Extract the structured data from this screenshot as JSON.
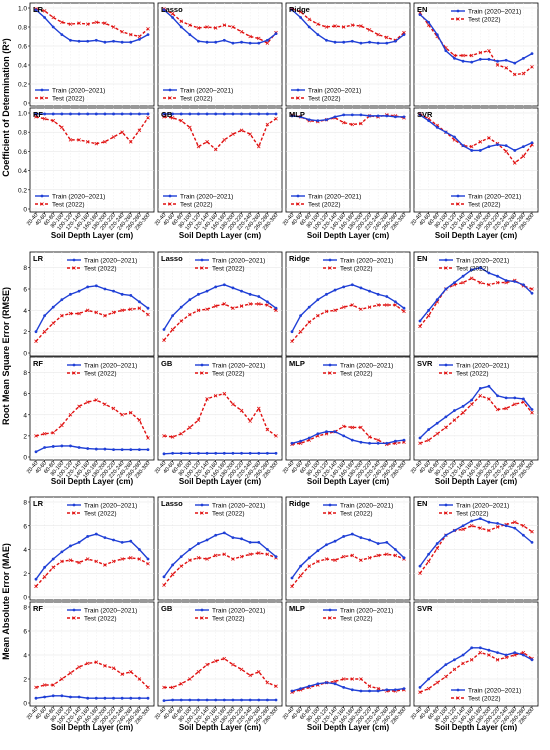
{
  "x_categories": [
    "20-40",
    "40-60",
    "60-80",
    "80-100",
    "100-120",
    "120-140",
    "140-160",
    "160-180",
    "180-200",
    "200-220",
    "220-240",
    "240-260",
    "260-280",
    "280-300"
  ],
  "x_label": "Soil Depth Layer (cm)",
  "legend": {
    "train": "Train (2020–2021)",
    "test": "Test (2022)"
  },
  "colors": {
    "train": "#1f3fd6",
    "test": "#e01010"
  },
  "chart_data": [
    {
      "type": "line",
      "ylabel": "Coefficient of Determination (R²)",
      "ylim": [
        0,
        1
      ],
      "yticks": [
        0,
        0.2,
        0.4,
        0.6,
        0.8,
        1.0
      ],
      "yticklabels": [
        "0",
        "0.2",
        "0.4",
        "0.6",
        "0.8",
        "1.0"
      ],
      "panels": [
        {
          "name": "LR",
          "legend": "bottom-left",
          "train": [
            0.98,
            0.9,
            0.8,
            0.72,
            0.66,
            0.65,
            0.65,
            0.66,
            0.64,
            0.65,
            0.64,
            0.64,
            0.67,
            0.72
          ],
          "test": [
            0.99,
            0.97,
            0.9,
            0.85,
            0.83,
            0.84,
            0.83,
            0.85,
            0.84,
            0.8,
            0.75,
            0.72,
            0.7,
            0.78
          ]
        },
        {
          "name": "Lasso",
          "legend": "bottom-left",
          "train": [
            0.98,
            0.9,
            0.8,
            0.72,
            0.65,
            0.64,
            0.64,
            0.66,
            0.63,
            0.64,
            0.63,
            0.63,
            0.66,
            0.73
          ],
          "test": [
            0.99,
            0.94,
            0.86,
            0.82,
            0.79,
            0.8,
            0.79,
            0.82,
            0.8,
            0.75,
            0.7,
            0.68,
            0.63,
            0.74
          ]
        },
        {
          "name": "Ridge",
          "legend": "bottom-left",
          "train": [
            0.98,
            0.9,
            0.8,
            0.72,
            0.66,
            0.64,
            0.64,
            0.65,
            0.63,
            0.64,
            0.63,
            0.63,
            0.65,
            0.72
          ],
          "test": [
            0.99,
            0.96,
            0.88,
            0.83,
            0.8,
            0.81,
            0.8,
            0.82,
            0.81,
            0.77,
            0.72,
            0.69,
            0.66,
            0.74
          ]
        },
        {
          "name": "EN",
          "legend": "top-right",
          "train": [
            0.93,
            0.85,
            0.72,
            0.55,
            0.47,
            0.44,
            0.43,
            0.46,
            0.46,
            0.44,
            0.45,
            0.42,
            0.47,
            0.52
          ],
          "test": [
            0.95,
            0.82,
            0.7,
            0.58,
            0.5,
            0.5,
            0.5,
            0.53,
            0.55,
            0.4,
            0.37,
            0.3,
            0.31,
            0.38
          ]
        },
        {
          "name": "RF",
          "legend": "bottom-left",
          "train": [
            0.99,
            0.99,
            0.99,
            0.99,
            0.99,
            0.99,
            0.99,
            0.99,
            0.99,
            0.99,
            0.99,
            0.99,
            0.99,
            0.99
          ],
          "test": [
            0.96,
            0.94,
            0.92,
            0.85,
            0.72,
            0.72,
            0.7,
            0.68,
            0.7,
            0.75,
            0.8,
            0.7,
            0.82,
            0.95
          ]
        },
        {
          "name": "GB",
          "legend": "bottom-left",
          "train": [
            0.99,
            0.99,
            0.99,
            0.99,
            0.99,
            0.99,
            0.99,
            0.99,
            0.99,
            0.99,
            0.99,
            0.99,
            0.99,
            0.99
          ],
          "test": [
            0.96,
            0.95,
            0.92,
            0.85,
            0.65,
            0.7,
            0.62,
            0.72,
            0.78,
            0.82,
            0.78,
            0.65,
            0.88,
            0.94
          ]
        },
        {
          "name": "MLP",
          "legend": "bottom-left",
          "train": [
            0.97,
            0.96,
            0.93,
            0.92,
            0.93,
            0.96,
            0.98,
            0.98,
            0.98,
            0.97,
            0.97,
            0.97,
            0.96,
            0.96
          ],
          "test": [
            0.98,
            0.96,
            0.92,
            0.91,
            0.93,
            0.95,
            0.9,
            0.88,
            0.89,
            0.97,
            0.96,
            0.98,
            0.97,
            0.95
          ]
        },
        {
          "name": "SVR",
          "legend": "bottom-right",
          "train": [
            0.98,
            0.92,
            0.85,
            0.8,
            0.75,
            0.66,
            0.61,
            0.61,
            0.65,
            0.67,
            0.66,
            0.61,
            0.65,
            0.69
          ],
          "test": [
            0.99,
            0.94,
            0.87,
            0.8,
            0.72,
            0.66,
            0.65,
            0.7,
            0.74,
            0.68,
            0.6,
            0.48,
            0.55,
            0.67
          ]
        }
      ]
    },
    {
      "type": "line",
      "ylabel": "Root Mean Square Error (RMSE)",
      "ylim": [
        0,
        9
      ],
      "yticks": [
        0,
        2,
        4,
        6,
        8
      ],
      "yticklabels": [
        "0",
        "2",
        "4",
        "6",
        "8"
      ],
      "panels": [
        {
          "name": "LR",
          "legend": "top-right",
          "train": [
            2.0,
            3.5,
            4.3,
            5.0,
            5.5,
            5.8,
            6.2,
            6.3,
            6.0,
            5.8,
            5.5,
            5.4,
            4.8,
            4.2
          ],
          "test": [
            1.1,
            2.0,
            2.8,
            3.5,
            3.7,
            3.7,
            4.0,
            3.8,
            3.5,
            3.8,
            4.0,
            4.1,
            4.2,
            3.6
          ]
        },
        {
          "name": "Lasso",
          "legend": "top-right",
          "train": [
            2.2,
            3.5,
            4.3,
            5.0,
            5.5,
            5.8,
            6.2,
            6.4,
            6.1,
            5.8,
            5.5,
            5.3,
            4.8,
            4.2
          ],
          "test": [
            1.2,
            2.2,
            3.0,
            3.6,
            4.0,
            4.1,
            4.4,
            4.6,
            4.2,
            4.4,
            4.6,
            4.6,
            4.5,
            4.0
          ]
        },
        {
          "name": "Ridge",
          "legend": "top-right",
          "train": [
            2.0,
            3.5,
            4.3,
            5.0,
            5.5,
            5.9,
            6.2,
            6.4,
            6.1,
            5.8,
            5.5,
            5.3,
            4.8,
            4.2
          ],
          "test": [
            1.1,
            2.0,
            2.9,
            3.5,
            3.9,
            4.0,
            4.3,
            4.5,
            4.1,
            4.3,
            4.5,
            4.5,
            4.5,
            3.9
          ]
        },
        {
          "name": "EN",
          "legend": "top-left",
          "train": [
            3.0,
            4.0,
            5.0,
            6.0,
            6.6,
            7.2,
            7.8,
            8.0,
            7.5,
            7.2,
            6.8,
            6.7,
            6.4,
            5.6
          ],
          "test": [
            2.5,
            3.5,
            4.8,
            6.0,
            6.4,
            6.6,
            7.0,
            6.6,
            6.4,
            6.6,
            6.6,
            6.8,
            6.3,
            6.0
          ]
        },
        {
          "name": "RF",
          "legend": "top-right",
          "train": [
            0.5,
            0.9,
            1.0,
            1.05,
            1.05,
            0.9,
            0.8,
            0.75,
            0.75,
            0.7,
            0.7,
            0.7,
            0.7,
            0.7
          ],
          "test": [
            2.0,
            2.2,
            2.3,
            3.0,
            4.0,
            4.8,
            5.2,
            5.4,
            5.0,
            4.6,
            4.0,
            4.2,
            3.5,
            1.8
          ]
        },
        {
          "name": "GB",
          "legend": "top-right",
          "train": [
            0.3,
            0.35,
            0.35,
            0.35,
            0.35,
            0.35,
            0.35,
            0.35,
            0.35,
            0.35,
            0.35,
            0.35,
            0.35,
            0.35
          ],
          "test": [
            2.0,
            1.9,
            2.2,
            2.8,
            3.5,
            5.5,
            5.8,
            6.0,
            5.0,
            4.4,
            3.4,
            4.6,
            2.6,
            2.0
          ]
        },
        {
          "name": "MLP",
          "legend": "top-right",
          "train": [
            1.3,
            1.5,
            1.8,
            2.2,
            2.4,
            2.4,
            2.0,
            1.6,
            1.4,
            1.3,
            1.3,
            1.3,
            1.5,
            1.6
          ],
          "test": [
            1.2,
            1.3,
            1.6,
            2.0,
            2.2,
            2.4,
            2.9,
            2.8,
            2.8,
            1.9,
            1.6,
            1.2,
            1.3,
            1.4
          ]
        },
        {
          "name": "SVR",
          "legend": "top-left",
          "train": [
            1.8,
            2.6,
            3.2,
            3.8,
            4.4,
            4.8,
            5.4,
            6.5,
            6.7,
            5.8,
            5.6,
            5.6,
            5.5,
            4.5
          ],
          "test": [
            1.3,
            1.6,
            2.2,
            2.8,
            3.5,
            4.2,
            5.0,
            5.8,
            5.5,
            4.5,
            4.6,
            5.0,
            5.2,
            4.2
          ]
        }
      ]
    },
    {
      "type": "line",
      "ylabel": "Mean Absolute Error (MAE)",
      "ylim": [
        0,
        8
      ],
      "yticks": [
        0,
        2,
        4,
        6,
        8
      ],
      "yticklabels": [
        "0",
        "2",
        "4",
        "6",
        "8"
      ],
      "panels": [
        {
          "name": "LR",
          "legend": "top-right",
          "train": [
            1.5,
            2.5,
            3.2,
            3.8,
            4.3,
            4.6,
            5.1,
            5.3,
            5.0,
            4.8,
            4.6,
            4.7,
            4.0,
            3.2
          ],
          "test": [
            0.9,
            1.7,
            2.5,
            3.0,
            3.1,
            2.9,
            3.2,
            3.0,
            2.7,
            3.0,
            3.2,
            3.3,
            3.2,
            2.8
          ]
        },
        {
          "name": "Lasso",
          "legend": "top-right",
          "train": [
            1.7,
            2.7,
            3.4,
            4.0,
            4.5,
            4.8,
            5.2,
            5.4,
            5.0,
            4.9,
            4.6,
            4.6,
            4.0,
            3.4
          ],
          "test": [
            1.0,
            1.9,
            2.6,
            3.1,
            3.3,
            3.2,
            3.5,
            3.6,
            3.2,
            3.4,
            3.6,
            3.7,
            3.6,
            3.3
          ]
        },
        {
          "name": "Ridge",
          "legend": "top-right",
          "train": [
            1.6,
            2.6,
            3.3,
            3.9,
            4.4,
            4.7,
            5.1,
            5.3,
            5.0,
            4.8,
            4.5,
            4.6,
            4.0,
            3.3
          ],
          "test": [
            0.9,
            1.8,
            2.6,
            3.0,
            3.2,
            3.1,
            3.4,
            3.5,
            3.1,
            3.3,
            3.5,
            3.6,
            3.5,
            3.2
          ]
        },
        {
          "name": "EN",
          "legend": "top-left",
          "train": [
            2.6,
            3.6,
            4.5,
            5.2,
            5.6,
            6.0,
            6.4,
            6.6,
            6.3,
            6.2,
            6.0,
            5.8,
            5.2,
            4.6
          ],
          "test": [
            2.0,
            3.0,
            4.1,
            5.2,
            5.6,
            5.7,
            6.0,
            5.8,
            5.6,
            5.9,
            6.1,
            6.3,
            6.0,
            5.5
          ]
        },
        {
          "name": "RF",
          "legend": "top-right",
          "train": [
            0.4,
            0.5,
            0.6,
            0.6,
            0.5,
            0.5,
            0.4,
            0.4,
            0.4,
            0.4,
            0.4,
            0.4,
            0.4,
            0.4
          ],
          "test": [
            1.3,
            1.5,
            1.5,
            2.0,
            2.5,
            3.0,
            3.3,
            3.4,
            3.1,
            2.9,
            2.4,
            2.6,
            2.0,
            1.3
          ]
        },
        {
          "name": "GB",
          "legend": "top-right",
          "train": [
            0.2,
            0.25,
            0.25,
            0.25,
            0.25,
            0.25,
            0.25,
            0.25,
            0.25,
            0.25,
            0.25,
            0.25,
            0.25,
            0.25
          ],
          "test": [
            1.3,
            1.3,
            1.6,
            2.0,
            2.6,
            3.2,
            3.5,
            3.7,
            3.2,
            2.8,
            2.3,
            2.6,
            1.7,
            1.4
          ]
        },
        {
          "name": "MLP",
          "legend": "top-right",
          "train": [
            1.0,
            1.2,
            1.4,
            1.6,
            1.7,
            1.6,
            1.3,
            1.1,
            1.0,
            1.0,
            1.0,
            1.1,
            1.1,
            1.2
          ],
          "test": [
            0.9,
            1.1,
            1.3,
            1.5,
            1.7,
            1.8,
            2.0,
            2.0,
            2.0,
            1.4,
            1.2,
            1.0,
            1.0,
            1.1
          ]
        },
        {
          "name": "SVR",
          "legend": "bottom-right",
          "train": [
            1.3,
            2.0,
            2.6,
            3.2,
            3.6,
            4.0,
            4.6,
            4.6,
            4.4,
            4.2,
            4.0,
            4.2,
            4.0,
            3.6
          ],
          "test": [
            0.9,
            1.2,
            1.7,
            2.2,
            2.8,
            3.3,
            3.6,
            4.2,
            4.0,
            3.6,
            3.8,
            4.0,
            4.2,
            3.7
          ]
        }
      ]
    }
  ]
}
